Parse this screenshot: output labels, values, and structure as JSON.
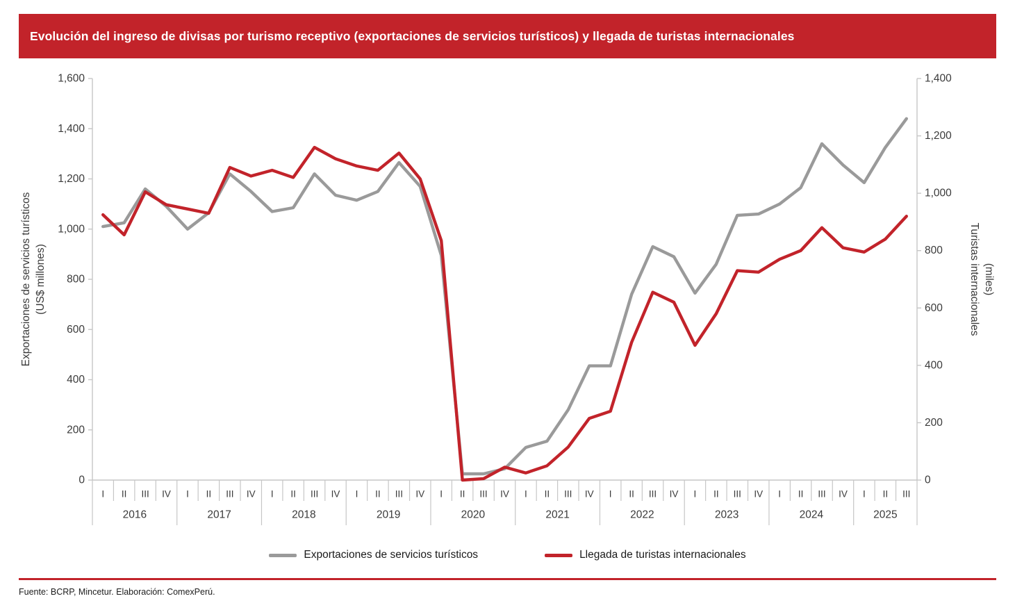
{
  "banner": {
    "title": "Evolución del ingreso de divisas por turismo receptivo (exportaciones de servicios turísticos) y llegada de turistas internacionales",
    "bg_color": "#c2232a"
  },
  "colors": {
    "accent_red": "#c2232a",
    "series_gray": "#9a9a9a",
    "axis_line": "#c6c6c6",
    "tick_text": "#3a3a3a"
  },
  "chart_data": {
    "type": "line",
    "title": "Evolución del ingreso de divisas por turismo receptivo (exportaciones de servicios turísticos) y llegada de turistas internacionales",
    "grid": false,
    "legend_position": "bottom",
    "years": [
      {
        "label": "2016",
        "quarters": [
          "I",
          "II",
          "III",
          "IV"
        ]
      },
      {
        "label": "2017",
        "quarters": [
          "I",
          "II",
          "III",
          "IV"
        ]
      },
      {
        "label": "2018",
        "quarters": [
          "I",
          "II",
          "III",
          "IV"
        ]
      },
      {
        "label": "2019",
        "quarters": [
          "I",
          "II",
          "III",
          "IV"
        ]
      },
      {
        "label": "2020",
        "quarters": [
          "I",
          "II",
          "III",
          "IV"
        ]
      },
      {
        "label": "2021",
        "quarters": [
          "I",
          "II",
          "III",
          "IV"
        ]
      },
      {
        "label": "2022",
        "quarters": [
          "I",
          "II",
          "III",
          "IV"
        ]
      },
      {
        "label": "2023",
        "quarters": [
          "I",
          "II",
          "III",
          "IV"
        ]
      },
      {
        "label": "2024",
        "quarters": [
          "I",
          "II",
          "III",
          "IV"
        ]
      },
      {
        "label": "2025",
        "quarters": [
          "I",
          "II",
          "III"
        ]
      }
    ],
    "left_axis": {
      "title_line1": "Exportaciones de servicios turísticos",
      "title_line2": "(US$ millones)",
      "min": 0,
      "max": 1600,
      "step": 200,
      "ticks": [
        0,
        200,
        400,
        600,
        800,
        1000,
        1200,
        1400,
        1600
      ]
    },
    "right_axis": {
      "title_line1": "Turistas internacionales",
      "title_line2": "(miles)",
      "min": 0,
      "max": 1400,
      "step": 200,
      "ticks": [
        0,
        200,
        400,
        600,
        800,
        1000,
        1200,
        1400
      ]
    },
    "series": [
      {
        "name": "Exportaciones de servicios turísticos",
        "axis": "left",
        "color": "#9a9a9a",
        "values": [
          1010,
          1025,
          1160,
          1090,
          1000,
          1065,
          1220,
          1150,
          1070,
          1085,
          1220,
          1135,
          1115,
          1150,
          1265,
          1170,
          895,
          25,
          25,
          45,
          130,
          155,
          280,
          455,
          455,
          740,
          930,
          890,
          745,
          860,
          1055,
          1060,
          1100,
          1165,
          1340,
          1255,
          1185,
          1325,
          1440
        ]
      },
      {
        "name": "Llegada de turistas internacionales",
        "axis": "right",
        "color": "#c2232a",
        "values": [
          925,
          855,
          1005,
          960,
          945,
          930,
          1090,
          1060,
          1080,
          1055,
          1160,
          1120,
          1095,
          1080,
          1140,
          1050,
          835,
          0,
          5,
          45,
          25,
          50,
          115,
          215,
          240,
          480,
          655,
          620,
          470,
          580,
          730,
          725,
          770,
          800,
          880,
          810,
          795,
          840,
          920
        ]
      }
    ]
  },
  "footer": {
    "source": "Fuente: BCRP, Mincetur. Elaboración: ComexPerú."
  }
}
